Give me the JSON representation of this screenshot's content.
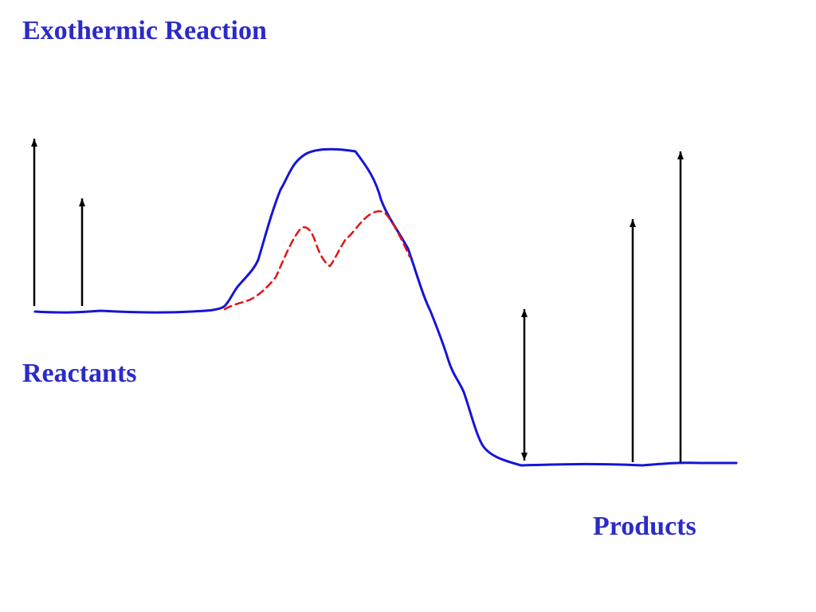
{
  "slide": {
    "title": "Exothermic Reaction",
    "reactants_label": "Reactants",
    "products_label": "Products"
  },
  "colors": {
    "text": "#2b2bc8",
    "main_curve": "#1515d6",
    "catalyzed_curve": "#e01414",
    "arrows": "#000000"
  }
}
